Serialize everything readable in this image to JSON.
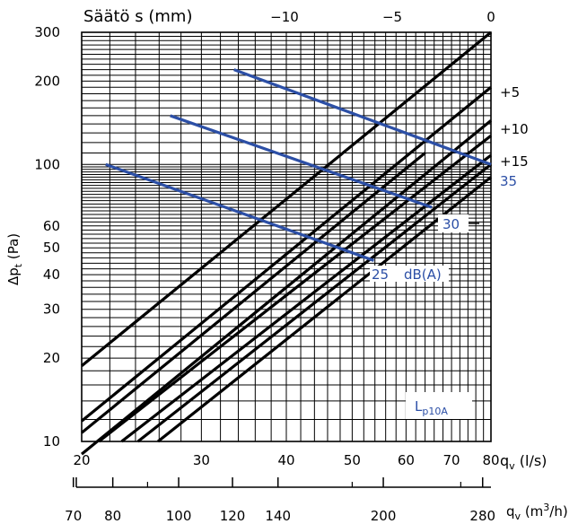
{
  "chart_data": {
    "type": "line",
    "title": "Säätö s (mm)",
    "ylabel": "Δpt (Pa)",
    "ylabel_main": "Δp",
    "ylabel_sub": "t",
    "ylabel_unit": " (Pa)",
    "xlabel": "qv (l/s)",
    "xlabel_main": "q",
    "xlabel_sub": "v",
    "xlabel_unit": " (l/s)",
    "x2label_main": "q",
    "x2label_sub": "v",
    "x2label_unit_a": " (m",
    "x2label_sup": "3",
    "x2label_unit_b": "/h)",
    "scale": "log-log",
    "xlim": [
      20,
      80
    ],
    "ylim": [
      10,
      300
    ],
    "grid": true,
    "y_ticks": [
      10,
      20,
      30,
      40,
      50,
      60,
      100,
      200,
      300
    ],
    "x_ticks": [
      20,
      30,
      40,
      50,
      60,
      70,
      80
    ],
    "x2_ticks": [
      70,
      80,
      100,
      120,
      140,
      200,
      280
    ],
    "setting_lines": [
      {
        "name": "−10",
        "x": [
          20,
          64
        ],
        "y": [
          10.75,
          110
        ]
      },
      {
        "name": "−5",
        "x": [
          20,
          80
        ],
        "y": [
          18.75,
          300
        ]
      },
      {
        "name": "0",
        "x": [
          20,
          80
        ],
        "y": [
          11.85,
          190
        ]
      },
      {
        "name": "+5",
        "x": [
          20,
          80
        ],
        "y": [
          9.0,
          144
        ]
      },
      {
        "name": "+10",
        "x": [
          21.2,
          80
        ],
        "y": [
          10,
          127
        ]
      },
      {
        "name": "+15",
        "x": [
          22.9,
          80
        ],
        "y": [
          10,
          108
        ]
      },
      {
        "name": "",
        "x": [
          24.2,
          80
        ],
        "y": [
          10,
          100
        ]
      },
      {
        "name": "",
        "x": [
          25.9,
          80
        ],
        "y": [
          10,
          90
        ]
      }
    ],
    "top_labels": [
      "−10",
      "−5",
      "0"
    ],
    "right_labels": [
      "+5",
      "+10",
      "+15"
    ],
    "sound_lines": [
      {
        "name": "25 dB(A)",
        "x": [
          21.7,
          53.8
        ],
        "y": [
          100,
          45
        ]
      },
      {
        "name": "30",
        "x": [
          27,
          65.5
        ],
        "y": [
          150,
          70
        ]
      },
      {
        "name": "35",
        "x": [
          33.5,
          80
        ],
        "y": [
          220,
          100
        ]
      }
    ],
    "sound_labels": [
      "25",
      "dB(A)",
      "30",
      "35"
    ],
    "annotation_main": "L",
    "annotation_sub": "p10A"
  }
}
